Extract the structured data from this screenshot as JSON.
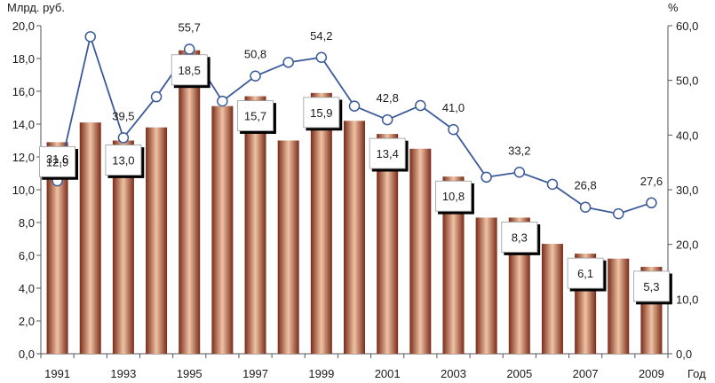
{
  "chart_data": {
    "type": "bar+line",
    "x": [
      1991,
      1992,
      1993,
      1994,
      1995,
      1996,
      1997,
      1998,
      1999,
      2000,
      2001,
      2002,
      2003,
      2004,
      2005,
      2006,
      2007,
      2008,
      2009
    ],
    "x_tick_labels": [
      "1991",
      "1993",
      "1995",
      "1997",
      "1999",
      "2001",
      "2003",
      "2005",
      "2007",
      "2009"
    ],
    "xlabel": "Год",
    "ylabel_left": "Млрд. руб.",
    "ylabel_right": "%",
    "ylim_left": [
      0,
      20
    ],
    "ylim_right": [
      0,
      60
    ],
    "y_left_ticks": [
      "0,0",
      "2,0",
      "4,0",
      "6,0",
      "8,0",
      "10,0",
      "12,0",
      "14,0",
      "16,0",
      "18,0",
      "20,0"
    ],
    "y_right_ticks": [
      "0,0",
      "10,0",
      "20,0",
      "30,0",
      "40,0",
      "50,0",
      "60,0"
    ],
    "series": [
      {
        "type": "bar",
        "axis": "left",
        "values": [
          12.9,
          14.1,
          13.0,
          13.8,
          18.5,
          15.1,
          15.7,
          13.0,
          15.9,
          14.2,
          13.4,
          12.5,
          10.8,
          8.3,
          8.3,
          6.7,
          6.1,
          5.8,
          5.3
        ],
        "labels": [
          "12,9",
          "",
          "13,0",
          "",
          "18,5",
          "",
          "15,7",
          "",
          "15,9",
          "",
          "13,4",
          "",
          "10,8",
          "",
          "8,3",
          "",
          "6,1",
          "",
          "5,3"
        ]
      },
      {
        "type": "line",
        "axis": "right",
        "values": [
          31.6,
          58.0,
          39.5,
          47.0,
          55.7,
          46.2,
          50.8,
          53.3,
          54.2,
          45.3,
          42.8,
          45.4,
          41.0,
          32.3,
          33.2,
          31.0,
          26.8,
          25.6,
          27.6
        ],
        "labels": [
          "31,6",
          "",
          "39,5",
          "",
          "55,7",
          "",
          "50,8",
          "",
          "54,2",
          "",
          "42,8",
          "",
          "41,0",
          "",
          "33,2",
          "",
          "26,8",
          "",
          "27,6"
        ]
      }
    ],
    "grid": false,
    "legend": "none",
    "colors": {
      "bar_dark": "#7a2b19",
      "bar_light": "#f0c3a4",
      "line": "#3b5a9a",
      "marker_fill": "#ffffff",
      "axis": "#555555"
    }
  }
}
